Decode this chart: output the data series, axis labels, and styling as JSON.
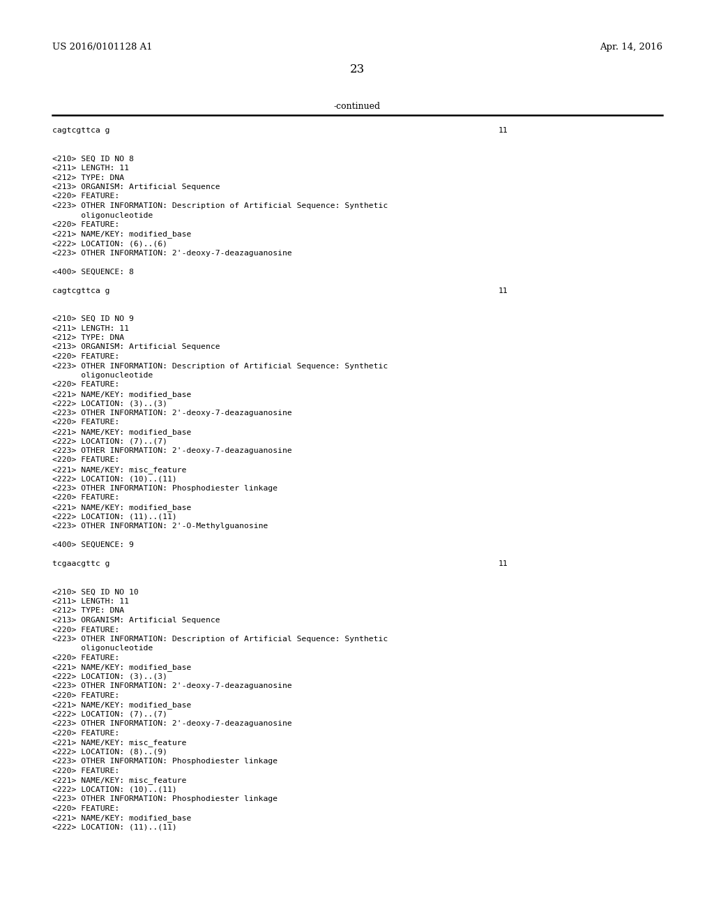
{
  "background_color": "#ffffff",
  "header_left": "US 2016/0101128 A1",
  "header_right": "Apr. 14, 2016",
  "page_number": "23",
  "continued_label": "-continued",
  "font_family": "DejaVu Sans Mono",
  "header_font_family": "DejaVu Serif",
  "body_lines": [
    {
      "text": "cagtcgttca g",
      "type": "sequence",
      "num": "11"
    },
    {
      "text": "",
      "type": "blank"
    },
    {
      "text": "",
      "type": "blank"
    },
    {
      "text": "<210> SEQ ID NO 8",
      "type": "code"
    },
    {
      "text": "<211> LENGTH: 11",
      "type": "code"
    },
    {
      "text": "<212> TYPE: DNA",
      "type": "code"
    },
    {
      "text": "<213> ORGANISM: Artificial Sequence",
      "type": "code"
    },
    {
      "text": "<220> FEATURE:",
      "type": "code"
    },
    {
      "text": "<223> OTHER INFORMATION: Description of Artificial Sequence: Synthetic",
      "type": "code"
    },
    {
      "text": "      oligonucleotide",
      "type": "code"
    },
    {
      "text": "<220> FEATURE:",
      "type": "code"
    },
    {
      "text": "<221> NAME/KEY: modified_base",
      "type": "code"
    },
    {
      "text": "<222> LOCATION: (6)..(6)",
      "type": "code"
    },
    {
      "text": "<223> OTHER INFORMATION: 2'-deoxy-7-deazaguanosine",
      "type": "code"
    },
    {
      "text": "",
      "type": "blank"
    },
    {
      "text": "<400> SEQUENCE: 8",
      "type": "code"
    },
    {
      "text": "",
      "type": "blank"
    },
    {
      "text": "cagtcgttca g",
      "type": "sequence",
      "num": "11"
    },
    {
      "text": "",
      "type": "blank"
    },
    {
      "text": "",
      "type": "blank"
    },
    {
      "text": "<210> SEQ ID NO 9",
      "type": "code"
    },
    {
      "text": "<211> LENGTH: 11",
      "type": "code"
    },
    {
      "text": "<212> TYPE: DNA",
      "type": "code"
    },
    {
      "text": "<213> ORGANISM: Artificial Sequence",
      "type": "code"
    },
    {
      "text": "<220> FEATURE:",
      "type": "code"
    },
    {
      "text": "<223> OTHER INFORMATION: Description of Artificial Sequence: Synthetic",
      "type": "code"
    },
    {
      "text": "      oligonucleotide",
      "type": "code"
    },
    {
      "text": "<220> FEATURE:",
      "type": "code"
    },
    {
      "text": "<221> NAME/KEY: modified_base",
      "type": "code"
    },
    {
      "text": "<222> LOCATION: (3)..(3)",
      "type": "code"
    },
    {
      "text": "<223> OTHER INFORMATION: 2'-deoxy-7-deazaguanosine",
      "type": "code"
    },
    {
      "text": "<220> FEATURE:",
      "type": "code"
    },
    {
      "text": "<221> NAME/KEY: modified_base",
      "type": "code"
    },
    {
      "text": "<222> LOCATION: (7)..(7)",
      "type": "code"
    },
    {
      "text": "<223> OTHER INFORMATION: 2'-deoxy-7-deazaguanosine",
      "type": "code"
    },
    {
      "text": "<220> FEATURE:",
      "type": "code"
    },
    {
      "text": "<221> NAME/KEY: misc_feature",
      "type": "code"
    },
    {
      "text": "<222> LOCATION: (10)..(11)",
      "type": "code"
    },
    {
      "text": "<223> OTHER INFORMATION: Phosphodiester linkage",
      "type": "code"
    },
    {
      "text": "<220> FEATURE:",
      "type": "code"
    },
    {
      "text": "<221> NAME/KEY: modified_base",
      "type": "code"
    },
    {
      "text": "<222> LOCATION: (11)..(11)",
      "type": "code"
    },
    {
      "text": "<223> OTHER INFORMATION: 2'-O-Methylguanosine",
      "type": "code"
    },
    {
      "text": "",
      "type": "blank"
    },
    {
      "text": "<400> SEQUENCE: 9",
      "type": "code"
    },
    {
      "text": "",
      "type": "blank"
    },
    {
      "text": "tcgaacgttc g",
      "type": "sequence",
      "num": "11"
    },
    {
      "text": "",
      "type": "blank"
    },
    {
      "text": "",
      "type": "blank"
    },
    {
      "text": "<210> SEQ ID NO 10",
      "type": "code"
    },
    {
      "text": "<211> LENGTH: 11",
      "type": "code"
    },
    {
      "text": "<212> TYPE: DNA",
      "type": "code"
    },
    {
      "text": "<213> ORGANISM: Artificial Sequence",
      "type": "code"
    },
    {
      "text": "<220> FEATURE:",
      "type": "code"
    },
    {
      "text": "<223> OTHER INFORMATION: Description of Artificial Sequence: Synthetic",
      "type": "code"
    },
    {
      "text": "      oligonucleotide",
      "type": "code"
    },
    {
      "text": "<220> FEATURE:",
      "type": "code"
    },
    {
      "text": "<221> NAME/KEY: modified_base",
      "type": "code"
    },
    {
      "text": "<222> LOCATION: (3)..(3)",
      "type": "code"
    },
    {
      "text": "<223> OTHER INFORMATION: 2'-deoxy-7-deazaguanosine",
      "type": "code"
    },
    {
      "text": "<220> FEATURE:",
      "type": "code"
    },
    {
      "text": "<221> NAME/KEY: modified_base",
      "type": "code"
    },
    {
      "text": "<222> LOCATION: (7)..(7)",
      "type": "code"
    },
    {
      "text": "<223> OTHER INFORMATION: 2'-deoxy-7-deazaguanosine",
      "type": "code"
    },
    {
      "text": "<220> FEATURE:",
      "type": "code"
    },
    {
      "text": "<221> NAME/KEY: misc_feature",
      "type": "code"
    },
    {
      "text": "<222> LOCATION: (8)..(9)",
      "type": "code"
    },
    {
      "text": "<223> OTHER INFORMATION: Phosphodiester linkage",
      "type": "code"
    },
    {
      "text": "<220> FEATURE:",
      "type": "code"
    },
    {
      "text": "<221> NAME/KEY: misc_feature",
      "type": "code"
    },
    {
      "text": "<222> LOCATION: (10)..(11)",
      "type": "code"
    },
    {
      "text": "<223> OTHER INFORMATION: Phosphodiester linkage",
      "type": "code"
    },
    {
      "text": "<220> FEATURE:",
      "type": "code"
    },
    {
      "text": "<221> NAME/KEY: modified_base",
      "type": "code"
    },
    {
      "text": "<222> LOCATION: (11)..(11)",
      "type": "code"
    }
  ]
}
